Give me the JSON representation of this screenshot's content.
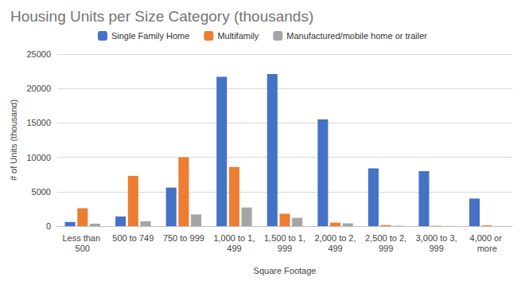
{
  "chart_data": {
    "type": "bar",
    "title": "Housing Units per Size Category (thousands)",
    "x_label": "Square Footage",
    "y_label": "# of Units (thousand)",
    "categories": [
      "Less than 500",
      "500 to 749",
      "750 to 999",
      "1,000 to 1,499",
      "1,500 to 1,999",
      "2,000 to 2,499",
      "2,500 to 2,999",
      "3,000 to 3,999",
      "4,000 or more"
    ],
    "series": [
      {
        "name": "Single Family Home",
        "color": "#4472c4",
        "values": [
          600,
          1400,
          5600,
          21700,
          22100,
          15500,
          8400,
          8000,
          4000
        ]
      },
      {
        "name": "Multifamily",
        "color": "#ed7d31",
        "values": [
          2600,
          7300,
          10000,
          8600,
          1800,
          500,
          150,
          50,
          100
        ]
      },
      {
        "name": "Manufactured/mobile home or trailer",
        "color": "#a5a5a5",
        "values": [
          350,
          700,
          1700,
          2700,
          1200,
          400,
          50,
          20,
          10
        ]
      }
    ],
    "ylim": [
      0,
      25000
    ],
    "yticks": [
      0,
      5000,
      10000,
      15000,
      20000,
      25000
    ],
    "grid": true,
    "legend": "top"
  }
}
